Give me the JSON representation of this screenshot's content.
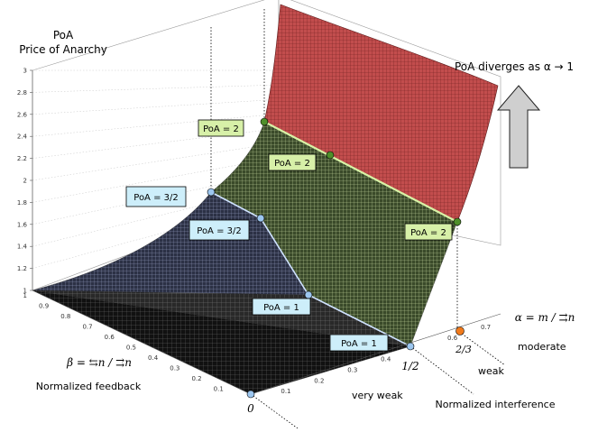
{
  "chart_data": {
    "type": "surface",
    "zlabel_line1": "PoA",
    "zlabel_line2": "Price of Anarchy",
    "z_ticks": [
      "1",
      "1.2",
      "1.4",
      "1.6",
      "1.8",
      "2",
      "2.2",
      "2.4",
      "2.6",
      "2.8",
      "3"
    ],
    "beta_ticks": [
      "0.1",
      "0.2",
      "0.3",
      "0.4",
      "0.5",
      "0.6",
      "0.7",
      "0.8",
      "0.9",
      "1"
    ],
    "alpha_ticks": [
      "0.1",
      "0.2",
      "0.3",
      "0.4",
      "0.6",
      "0.7"
    ],
    "beta_label": "β = ⇆n / ⇉n",
    "beta_caption": "Normalized feedback",
    "alpha_label": "α = m / ⇉n",
    "alpha_caption": "Normalized interference",
    "zero_label": "0",
    "half_label": "1/2",
    "two_thirds_label": "2/3",
    "regions": [
      "very weak",
      "weak",
      "moderate"
    ],
    "diverge_note": "PoA diverges as α → 1",
    "callouts_green": [
      "PoA = 2",
      "PoA = 2",
      "PoA = 2"
    ],
    "callouts_blue": [
      "PoA = 3/2",
      "PoA = 3/2",
      "PoA = 1",
      "PoA = 1"
    ],
    "colors": {
      "surface_dark": "#1a1a1a",
      "surface_mid": "#7f8f62",
      "surface_red": "#c14a4a",
      "green_point": "#4f8f2a",
      "blue_point": "#9cc6ef",
      "orange_point": "#f07a1c",
      "arrow_fill": "#cccccc"
    }
  }
}
